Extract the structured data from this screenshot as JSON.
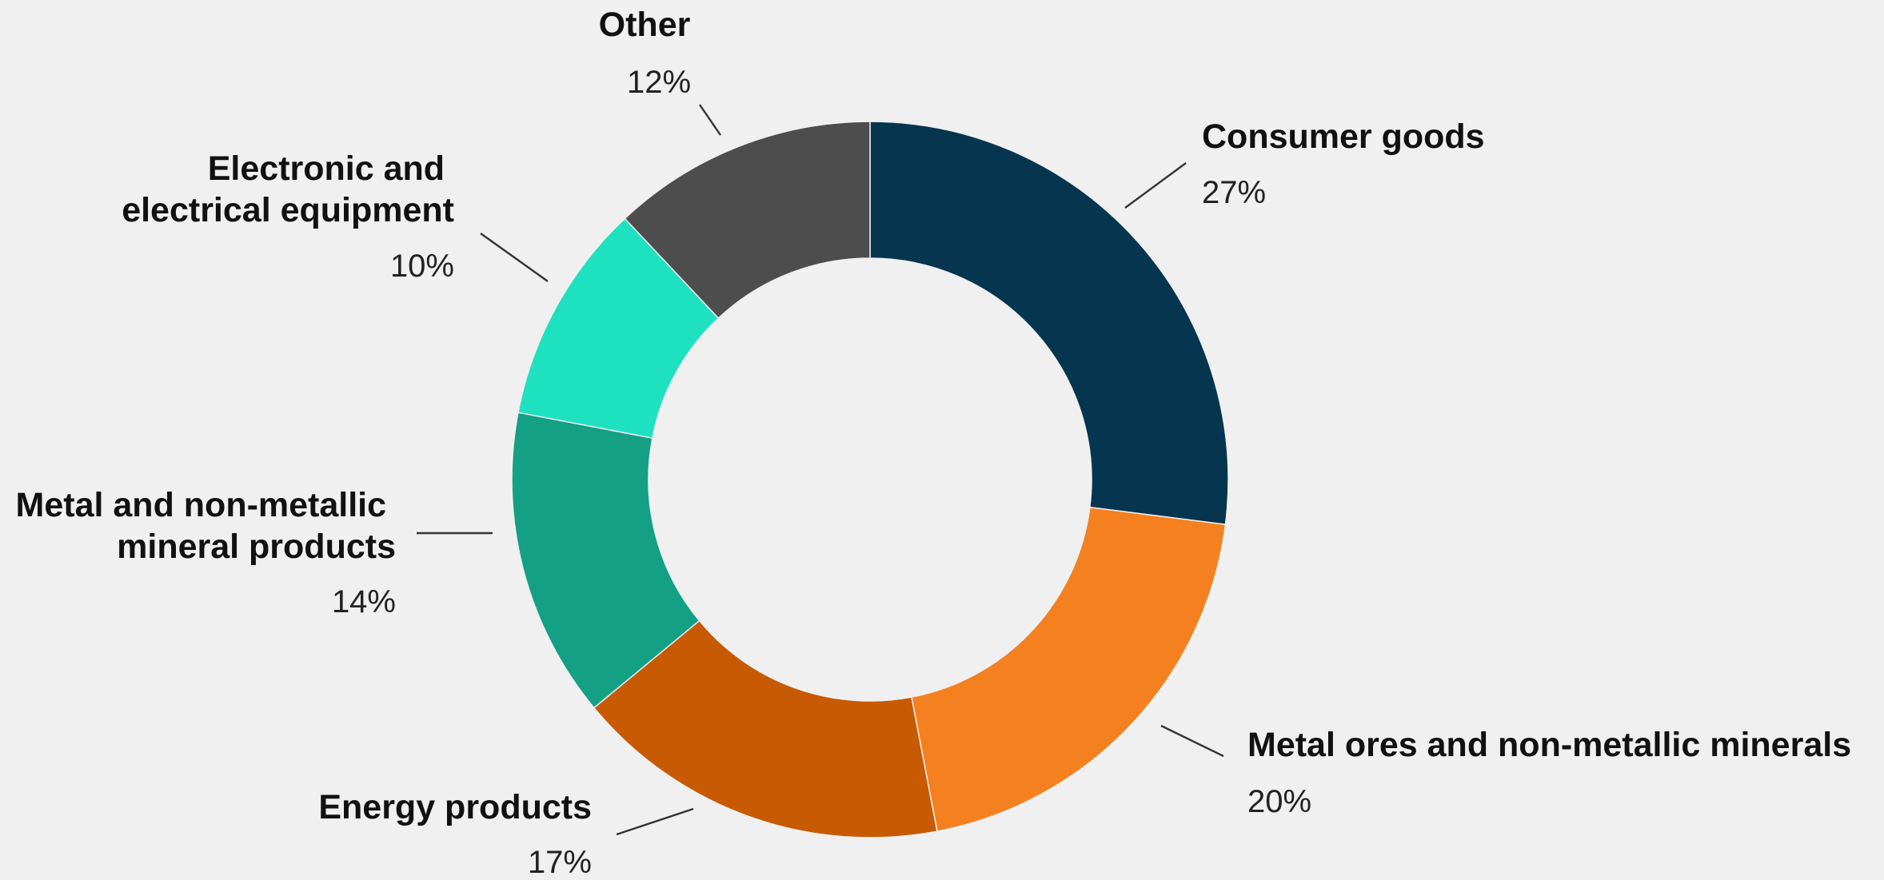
{
  "chart_data": {
    "type": "pie",
    "style": "donut",
    "start": "12 o'clock, clockwise",
    "slices": [
      {
        "label": "Consumer goods",
        "value": 27,
        "value_label": "27%",
        "color": "#05354f"
      },
      {
        "label": "Metal ores and non-metallic minerals",
        "value": 20,
        "value_label": "20%",
        "color": "#f5801f"
      },
      {
        "label": "Energy products",
        "value": 17,
        "value_label": "17%",
        "color": "#c75a02"
      },
      {
        "label": "Metal and non-metallic mineral products",
        "value": 14,
        "value_label": "14%",
        "color": "#13a085"
      },
      {
        "label": "Electronic and electrical equipment",
        "value": 10,
        "value_label": "10%",
        "color": "#1ee2bf"
      },
      {
        "label": "Other",
        "value": 12,
        "value_label": "12%",
        "color": "#4d4d4d"
      }
    ]
  }
}
